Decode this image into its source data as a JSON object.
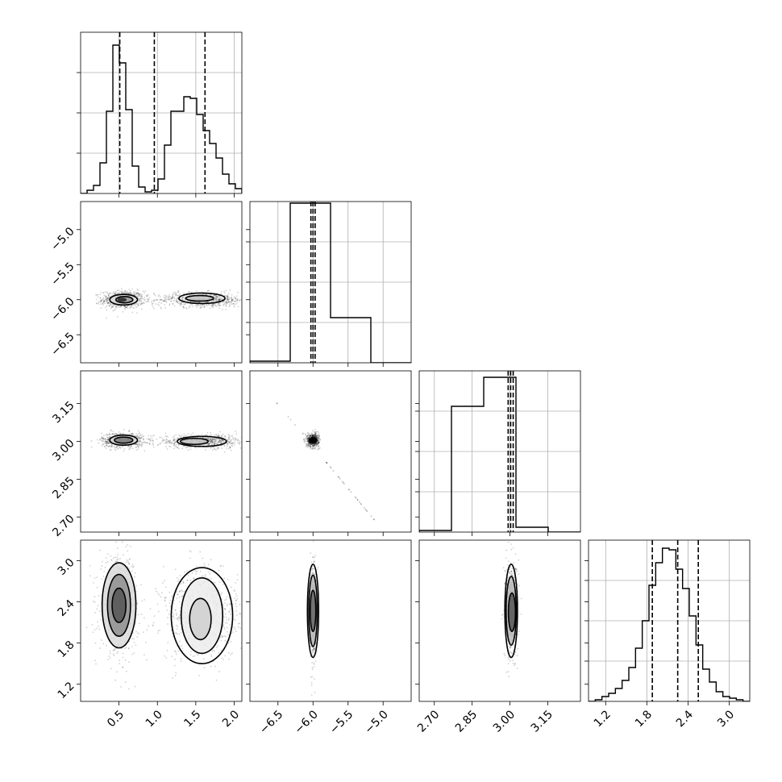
{
  "chart_data": {
    "type": "corner",
    "description_note": "",
    "parameters": [
      {
        "id": "p1",
        "range": [
          0.0,
          2.1
        ],
        "ticks": [
          0.5,
          1.0,
          1.5,
          2.0
        ],
        "tick_labels": [
          "0.5",
          "1.0",
          "1.5",
          "2.0"
        ],
        "quantiles": [
          0.51,
          0.96,
          1.62
        ],
        "hist_top": 0.91,
        "hist": [
          0,
          0.02,
          0.05,
          0.19,
          0.51,
          0.92,
          0.81,
          0.52,
          0.17,
          0.04,
          0.01,
          0.02,
          0.09,
          0.3,
          0.51,
          0.51,
          0.6,
          0.59,
          0.49,
          0.39,
          0.31,
          0.22,
          0.12,
          0.06,
          0.03
        ]
      },
      {
        "id": "p2",
        "range": [
          -6.9,
          -4.6
        ],
        "ticks": [
          -6.5,
          -6.0,
          -5.5,
          -5.0
        ],
        "tick_labels": [
          "−6.5",
          "−6.0",
          "−5.5",
          "−5.0"
        ],
        "quantiles": [
          -6.03,
          -6.0,
          -5.97
        ],
        "hist_top": 0.98,
        "hist": [
          0.01,
          0.99,
          0.28,
          0.0
        ]
      },
      {
        "id": "p3",
        "range": [
          2.64,
          3.28
        ],
        "ticks": [
          2.7,
          2.85,
          3.0,
          3.15
        ],
        "tick_labels": [
          "2.70",
          "2.85",
          "3.00",
          "3.15"
        ],
        "quantiles": [
          2.993,
          3.003,
          3.013
        ],
        "hist_top": 0.94,
        "hist": [
          0.01,
          0.78,
          0.96,
          0.03,
          0.0
        ]
      },
      {
        "id": "p4",
        "range": [
          0.95,
          3.3
        ],
        "ticks": [
          1.2,
          1.8,
          2.4,
          3.0
        ],
        "tick_labels": [
          "1.2",
          "1.8",
          "2.4",
          "3.0"
        ],
        "quantiles": [
          1.88,
          2.25,
          2.55
        ],
        "hist_top": 0.97,
        "hist": [
          0,
          0.01,
          0.03,
          0.05,
          0.08,
          0.13,
          0.21,
          0.33,
          0.5,
          0.72,
          0.86,
          0.95,
          0.94,
          0.82,
          0.7,
          0.53,
          0.35,
          0.2,
          0.12,
          0.06,
          0.03,
          0.02,
          0.01,
          0.0
        ]
      }
    ],
    "scatter_2d": [
      {
        "x_param": 0,
        "y_param": 1,
        "blobs": [
          {
            "cx": 0.55,
            "cy": -6.0,
            "sx": 0.13,
            "sy": 0.06
          },
          {
            "cx": 1.6,
            "cy": -6.0,
            "sx": 0.3,
            "sy": 0.05
          }
        ],
        "contours": [
          {
            "cx": 0.57,
            "cy": -6.0,
            "rx": 0.11,
            "ry": 0.045,
            "fill": "#9a9a9a"
          },
          {
            "cx": 0.56,
            "cy": -6.0,
            "rx": 0.18,
            "ry": 0.075,
            "fill": "#e0e0e0"
          },
          {
            "cx": 1.55,
            "cy": -5.98,
            "rx": 0.18,
            "ry": 0.04,
            "fill": "#c8c8c8"
          },
          {
            "cx": 1.58,
            "cy": -5.98,
            "rx": 0.3,
            "ry": 0.075,
            "fill": "none"
          },
          {
            "cx": 0.54,
            "cy": -6.0,
            "rx": 0.06,
            "ry": 0.03,
            "fill": "#222"
          }
        ]
      },
      {
        "x_param": 0,
        "y_param": 2,
        "blobs": [
          {
            "cx": 0.55,
            "cy": 3.005,
            "sx": 0.13,
            "sy": 0.014
          },
          {
            "cx": 1.6,
            "cy": 3.0,
            "sx": 0.3,
            "sy": 0.013
          }
        ],
        "contours": [
          {
            "cx": 0.56,
            "cy": 3.005,
            "rx": 0.12,
            "ry": 0.012,
            "fill": "#777"
          },
          {
            "cx": 0.56,
            "cy": 3.005,
            "rx": 0.18,
            "ry": 0.02,
            "fill": "#dcdcdc"
          },
          {
            "cx": 1.48,
            "cy": 3.0,
            "rx": 0.18,
            "ry": 0.012,
            "fill": "#c6c6c6"
          },
          {
            "cx": 1.58,
            "cy": 3.0,
            "rx": 0.32,
            "ry": 0.02,
            "fill": "none"
          }
        ]
      },
      {
        "x_param": 0,
        "y_param": 3,
        "blobs": [
          {
            "cx": 0.5,
            "cy": 2.35,
            "sx": 0.12,
            "sy": 0.33
          },
          {
            "cx": 1.6,
            "cy": 2.22,
            "sx": 0.27,
            "sy": 0.32
          }
        ],
        "contours": [
          {
            "cx": 0.5,
            "cy": 2.35,
            "rx": 0.09,
            "ry": 0.25,
            "fill": "#555"
          },
          {
            "cx": 0.5,
            "cy": 2.35,
            "rx": 0.15,
            "ry": 0.45,
            "fill": "#8e8e8e"
          },
          {
            "cx": 0.5,
            "cy": 2.35,
            "rx": 0.22,
            "ry": 0.62,
            "fill": "#dadada"
          },
          {
            "cx": 1.56,
            "cy": 2.15,
            "rx": 0.14,
            "ry": 0.3,
            "fill": "#cfcfcf"
          },
          {
            "cx": 1.58,
            "cy": 2.2,
            "rx": 0.27,
            "ry": 0.55,
            "fill": "#ececec"
          },
          {
            "cx": 1.58,
            "cy": 2.2,
            "rx": 0.4,
            "ry": 0.7,
            "fill": "none"
          }
        ]
      },
      {
        "x_param": 1,
        "y_param": 2,
        "blobs": [
          {
            "cx": -6.0,
            "cy": 3.005,
            "sx": 0.04,
            "sy": 0.012
          }
        ],
        "contours": [
          {
            "cx": -6.0,
            "cy": 3.005,
            "rx": 0.06,
            "ry": 0.012,
            "fill": "#000"
          }
        ],
        "tail": {
          "x": [
            -6.6,
            -5.1
          ],
          "y": [
            3.18,
            2.68
          ]
        }
      },
      {
        "x_param": 1,
        "y_param": 3,
        "blobs": [
          {
            "cx": -6.0,
            "cy": 2.27,
            "sx": 0.025,
            "sy": 0.33
          }
        ],
        "contours": [
          {
            "cx": -6.0,
            "cy": 2.27,
            "rx": 0.04,
            "ry": 0.3,
            "fill": "#666"
          },
          {
            "cx": -6.0,
            "cy": 2.27,
            "rx": 0.06,
            "ry": 0.52,
            "fill": "#bdbdbd"
          },
          {
            "cx": -6.0,
            "cy": 2.27,
            "rx": 0.08,
            "ry": 0.68,
            "fill": "none"
          }
        ]
      },
      {
        "x_param": 2,
        "y_param": 3,
        "blobs": [
          {
            "cx": 3.005,
            "cy": 2.27,
            "sx": 0.012,
            "sy": 0.33
          }
        ],
        "contours": [
          {
            "cx": 3.008,
            "cy": 2.25,
            "rx": 0.014,
            "ry": 0.28,
            "fill": "#555"
          },
          {
            "cx": 3.005,
            "cy": 2.27,
            "rx": 0.02,
            "ry": 0.5,
            "fill": "#bdbdbd"
          },
          {
            "cx": 3.005,
            "cy": 2.27,
            "rx": 0.025,
            "ry": 0.68,
            "fill": "none"
          }
        ]
      }
    ],
    "grid": true
  }
}
